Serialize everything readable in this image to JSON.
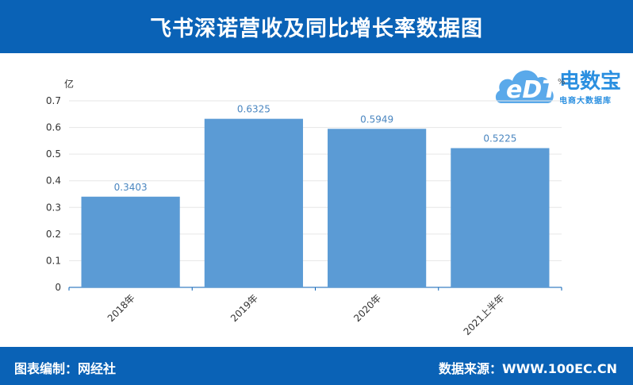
{
  "header": {
    "title": "飞书深诺营收及同比增长率数据图"
  },
  "footer": {
    "editor": "图表编制：网经社",
    "source": "数据来源：WWW.100EC.CN"
  },
  "logo": {
    "name_cn": "电数宝",
    "subtitle": "电商大数据库",
    "mark": "eDT",
    "unit_mark": "%"
  },
  "chart_data": {
    "type": "bar",
    "categories": [
      "2018年",
      "2019年",
      "2020年",
      "2021上半年"
    ],
    "values": [
      0.3403,
      0.6325,
      0.5949,
      0.5225
    ],
    "data_labels": [
      "0.3403",
      "0.6325",
      "0.5949",
      "0.5225"
    ],
    "ylabel": "亿",
    "ylim": [
      0,
      0.7
    ],
    "yticks": [
      "0",
      "0.1",
      "0.2",
      "0.3",
      "0.4",
      "0.5",
      "0.6",
      "0.7"
    ],
    "grid": true,
    "bar_color": "#5b9bd5",
    "label_color": "#4a86c0"
  }
}
